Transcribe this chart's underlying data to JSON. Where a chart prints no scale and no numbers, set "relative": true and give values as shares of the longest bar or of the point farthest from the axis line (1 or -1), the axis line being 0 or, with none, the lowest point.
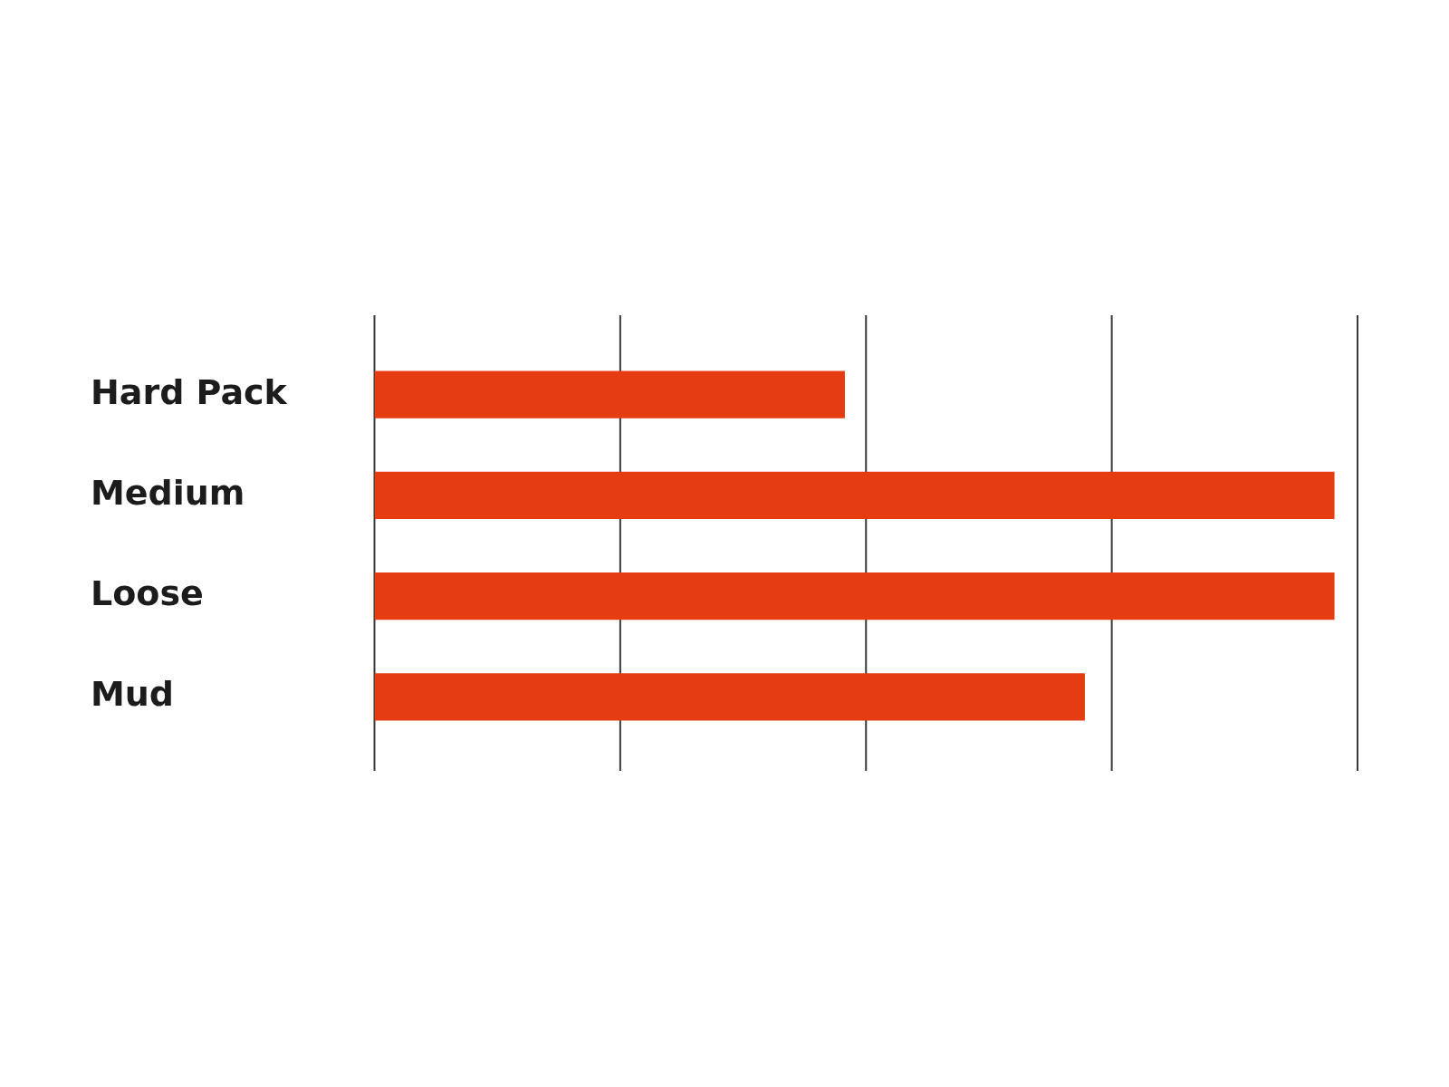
{
  "chart_data": {
    "type": "bar",
    "orientation": "horizontal",
    "relative": true,
    "categories": [
      "Hard Pack",
      "Medium",
      "Loose",
      "Mud"
    ],
    "values": [
      0.49,
      1,
      1,
      0.74
    ],
    "color": "#e63c12",
    "grid": "x"
  }
}
